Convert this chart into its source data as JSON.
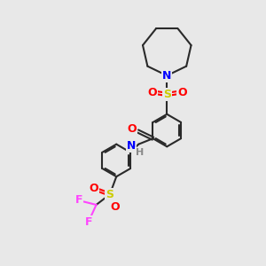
{
  "background_color": "#e8e8e8",
  "bond_color": "#2a2a2a",
  "atom_colors": {
    "N": "#0000ff",
    "O": "#ff0000",
    "S": "#cccc00",
    "F": "#ff44ff",
    "H": "#888888",
    "C": "#2a2a2a"
  },
  "font_size": 8,
  "line_width": 1.5
}
